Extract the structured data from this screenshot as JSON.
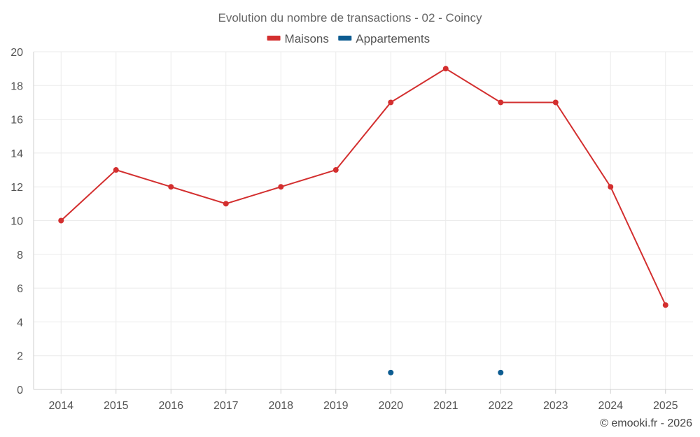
{
  "chart_data": {
    "type": "line",
    "title": "Evolution du nombre de transactions - 02 - Coincy",
    "categories": [
      "2014",
      "2015",
      "2016",
      "2017",
      "2018",
      "2019",
      "2020",
      "2021",
      "2022",
      "2023",
      "2024",
      "2025"
    ],
    "series": [
      {
        "name": "Maisons",
        "color": "#d32f2f",
        "values": [
          10,
          13,
          12,
          11,
          12,
          13,
          17,
          19,
          17,
          17,
          12,
          5
        ]
      },
      {
        "name": "Appartements",
        "color": "#0d5c91",
        "values": [
          null,
          null,
          null,
          null,
          null,
          null,
          1,
          null,
          1,
          null,
          null,
          null
        ]
      }
    ],
    "ylim": [
      0,
      20
    ],
    "yticks": [
      0,
      2,
      4,
      6,
      8,
      10,
      12,
      14,
      16,
      18,
      20
    ],
    "grid": true,
    "legend": "top-center"
  },
  "credit": "© emooki.fr - 2026"
}
